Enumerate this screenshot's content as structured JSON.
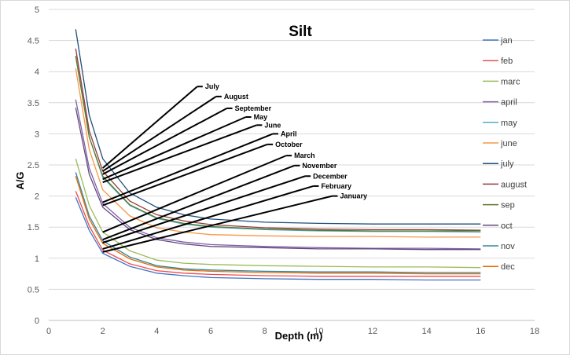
{
  "chart_data": {
    "type": "line",
    "title": "Silt",
    "xlabel": "Depth (m)",
    "ylabel": "A/G",
    "xlim": [
      0,
      18
    ],
    "ylim": [
      0,
      5
    ],
    "x_ticks": [
      "0",
      "2",
      "4",
      "6",
      "8",
      "10",
      "12",
      "14",
      "16",
      "18"
    ],
    "y_ticks": [
      "0",
      "0.5",
      "1",
      "1.5",
      "2",
      "2.5",
      "3",
      "3.5",
      "4",
      "4.5",
      "5"
    ],
    "gridlines": "horizontal",
    "legend_position": "right",
    "x": [
      1,
      1.5,
      2,
      3,
      4,
      5,
      6,
      8,
      10,
      12,
      14,
      16
    ],
    "series": [
      {
        "name": "jan",
        "color": "#4472c4",
        "values": [
          1.98,
          1.45,
          1.08,
          0.87,
          0.76,
          0.72,
          0.69,
          0.67,
          0.66,
          0.66,
          0.65,
          0.65
        ]
      },
      {
        "name": "feb",
        "color": "#ed4c4c",
        "values": [
          2.08,
          1.52,
          1.13,
          0.91,
          0.8,
          0.76,
          0.74,
          0.72,
          0.71,
          0.71,
          0.71,
          0.71
        ]
      },
      {
        "name": "marc",
        "color": "#9bbb59",
        "values": [
          2.6,
          1.85,
          1.42,
          1.12,
          0.97,
          0.92,
          0.9,
          0.88,
          0.87,
          0.86,
          0.86,
          0.85
        ]
      },
      {
        "name": "april",
        "color": "#7f5fa8",
        "values": [
          3.55,
          2.45,
          1.88,
          1.5,
          1.33,
          1.26,
          1.22,
          1.19,
          1.17,
          1.16,
          1.16,
          1.15
        ]
      },
      {
        "name": "may",
        "color": "#4bacc6",
        "values": [
          4.25,
          2.95,
          2.3,
          1.85,
          1.64,
          1.55,
          1.5,
          1.46,
          1.44,
          1.43,
          1.43,
          1.42
        ]
      },
      {
        "name": "june",
        "color": "#f79646",
        "values": [
          4.05,
          2.75,
          2.1,
          1.68,
          1.49,
          1.42,
          1.38,
          1.36,
          1.35,
          1.35,
          1.34,
          1.34
        ]
      },
      {
        "name": "july",
        "color": "#1f4e79",
        "values": [
          4.68,
          3.3,
          2.6,
          2.05,
          1.82,
          1.7,
          1.63,
          1.58,
          1.56,
          1.55,
          1.55,
          1.55
        ]
      },
      {
        "name": "august",
        "color": "#963c3c",
        "values": [
          4.37,
          3.05,
          2.4,
          1.92,
          1.7,
          1.6,
          1.54,
          1.49,
          1.47,
          1.46,
          1.46,
          1.45
        ]
      },
      {
        "name": "sep",
        "color": "#5a7a2e",
        "values": [
          4.25,
          2.95,
          2.32,
          1.86,
          1.65,
          1.56,
          1.51,
          1.47,
          1.45,
          1.44,
          1.44,
          1.44
        ]
      },
      {
        "name": "oct",
        "color": "#604a7b",
        "values": [
          3.42,
          2.35,
          1.82,
          1.46,
          1.3,
          1.23,
          1.19,
          1.17,
          1.15,
          1.15,
          1.14,
          1.14
        ]
      },
      {
        "name": "nov",
        "color": "#31859c",
        "values": [
          2.38,
          1.68,
          1.28,
          1.02,
          0.88,
          0.83,
          0.81,
          0.79,
          0.78,
          0.78,
          0.77,
          0.77
        ]
      },
      {
        "name": "dec",
        "color": "#e46c0a",
        "values": [
          2.32,
          1.63,
          1.24,
          0.99,
          0.86,
          0.81,
          0.79,
          0.77,
          0.76,
          0.76,
          0.75,
          0.75
        ]
      }
    ],
    "annotations": [
      {
        "label": "July",
        "from": [
          2,
          2.45
        ],
        "to": [
          5.5,
          3.76
        ]
      },
      {
        "label": "August",
        "from": [
          2,
          2.4
        ],
        "to": [
          6.2,
          3.6
        ]
      },
      {
        "label": "September",
        "from": [
          2,
          2.35
        ],
        "to": [
          6.6,
          3.41
        ]
      },
      {
        "label": "May",
        "from": [
          2,
          2.27
        ],
        "to": [
          7.3,
          3.27
        ]
      },
      {
        "label": "June",
        "from": [
          2,
          2.22
        ],
        "to": [
          7.7,
          3.14
        ]
      },
      {
        "label": "April",
        "from": [
          2,
          1.9
        ],
        "to": [
          8.3,
          3.0
        ]
      },
      {
        "label": "October",
        "from": [
          2,
          1.85
        ],
        "to": [
          8.1,
          2.83
        ]
      },
      {
        "label": "March",
        "from": [
          2,
          1.42
        ],
        "to": [
          8.8,
          2.65
        ]
      },
      {
        "label": "November",
        "from": [
          2,
          1.3
        ],
        "to": [
          9.1,
          2.49
        ]
      },
      {
        "label": "December",
        "from": [
          2,
          1.25
        ],
        "to": [
          9.5,
          2.32
        ]
      },
      {
        "label": "February",
        "from": [
          2,
          1.15
        ],
        "to": [
          9.8,
          2.16
        ]
      },
      {
        "label": "January",
        "from": [
          2,
          1.1
        ],
        "to": [
          10.5,
          2.0
        ]
      }
    ]
  }
}
